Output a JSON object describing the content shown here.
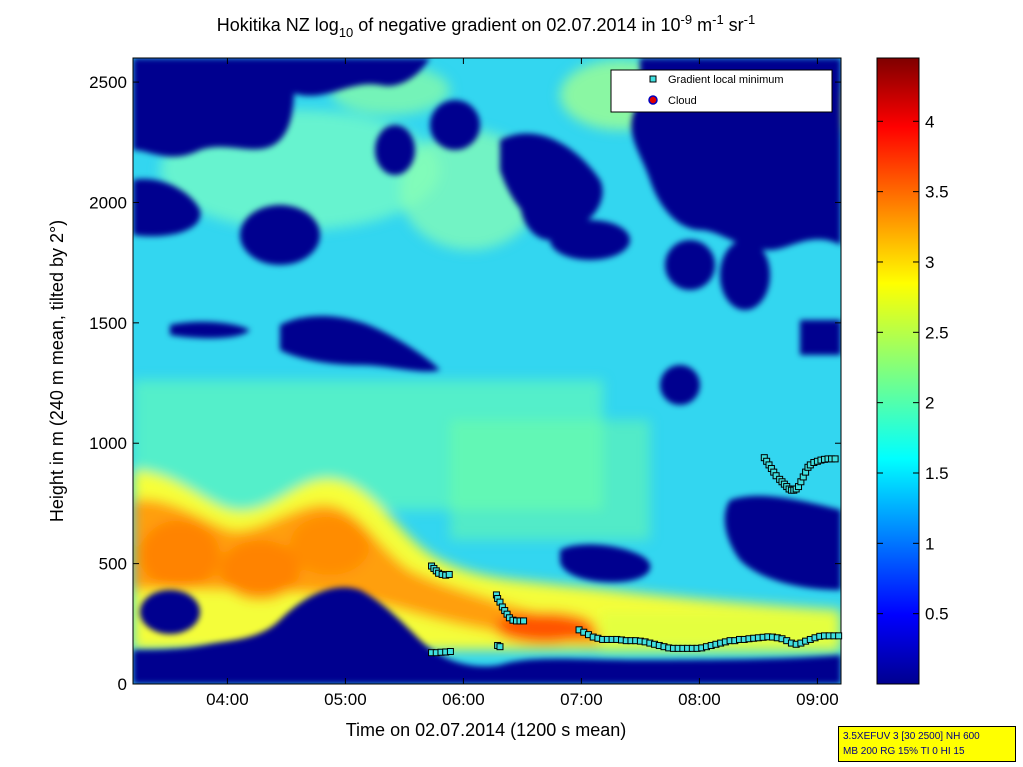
{
  "chart_data": {
    "type": "heatmap",
    "title": {
      "part1": "Hokitika NZ log",
      "sub1": "10",
      "part2": " of negative gradient on 02.07.2014 in 10",
      "sup1": "-9",
      "part3": " m",
      "sup2": "-1",
      "part4": " sr",
      "sup3": "-1"
    },
    "xlabel": "Time on 02.07.2014 (1200 s mean)",
    "ylabel": "Height in m (240 m mean, tilted by 2°)",
    "xlim": [
      3.2,
      9.2
    ],
    "ylim": [
      0,
      2600
    ],
    "x_ticks": [
      {
        "value": 4,
        "label": "04:00"
      },
      {
        "value": 5,
        "label": "05:00"
      },
      {
        "value": 6,
        "label": "06:00"
      },
      {
        "value": 7,
        "label": "07:00"
      },
      {
        "value": 8,
        "label": "08:00"
      },
      {
        "value": 9,
        "label": "09:00"
      }
    ],
    "y_ticks": [
      {
        "value": 0,
        "label": "0"
      },
      {
        "value": 500,
        "label": "500"
      },
      {
        "value": 1000,
        "label": "1000"
      },
      {
        "value": 1500,
        "label": "1500"
      },
      {
        "value": 2000,
        "label": "2000"
      },
      {
        "value": 2500,
        "label": "2500"
      }
    ],
    "colorbar": {
      "range": [
        0,
        4.45
      ],
      "colormap": "jet",
      "ticks": [
        {
          "value": 0.5,
          "label": "0.5"
        },
        {
          "value": 1,
          "label": "1"
        },
        {
          "value": 1.5,
          "label": "1.5"
        },
        {
          "value": 2,
          "label": "2"
        },
        {
          "value": 2.5,
          "label": "2.5"
        },
        {
          "value": 3,
          "label": "3"
        },
        {
          "value": 3.5,
          "label": "3.5"
        },
        {
          "value": 4,
          "label": "4"
        }
      ]
    },
    "legend": {
      "placement": "top-right",
      "entries": [
        {
          "label": "Gradient local minimum",
          "marker": "square",
          "color": "#40e0e0"
        },
        {
          "label": "Cloud",
          "marker": "circle",
          "color": "#e00000"
        }
      ]
    },
    "series": [
      {
        "name": "Gradient local minimum",
        "marker": "square",
        "color": "#40e0e0",
        "x": [
          5.73,
          5.75,
          5.77,
          5.79,
          5.82,
          5.85,
          5.88,
          5.73,
          5.77,
          5.81,
          5.85,
          5.89,
          6.28,
          6.29,
          6.31,
          6.33,
          6.35,
          6.37,
          6.39,
          6.42,
          6.45,
          6.48,
          6.51,
          6.29,
          6.31,
          6.98,
          7.02,
          7.06,
          7.1,
          7.14,
          7.18,
          7.22,
          7.26,
          7.3,
          7.34,
          7.38,
          7.42,
          7.46,
          7.5,
          7.54,
          7.58,
          7.62,
          7.66,
          7.7,
          7.74,
          7.78,
          7.82,
          7.86,
          7.9,
          7.94,
          7.98,
          8.02,
          8.06,
          8.1,
          8.14,
          8.18,
          8.22,
          8.26,
          8.3,
          8.34,
          8.38,
          8.42,
          8.46,
          8.5,
          8.54,
          8.58,
          8.62,
          8.66,
          8.7,
          8.74,
          8.78,
          8.82,
          8.86,
          8.9,
          8.94,
          8.98,
          9.02,
          9.06,
          9.1,
          9.14,
          9.18,
          8.55,
          8.57,
          8.59,
          8.61,
          8.63,
          8.65,
          8.68,
          8.7,
          8.72,
          8.74,
          8.76,
          8.78,
          8.8,
          8.82,
          8.84,
          8.86,
          8.88,
          8.9,
          8.92,
          8.94,
          8.97,
          9.0,
          9.03,
          9.06,
          9.09,
          9.12,
          9.15
        ],
        "y": [
          490,
          480,
          470,
          460,
          455,
          452,
          455,
          130,
          130,
          132,
          133,
          135,
          370,
          355,
          340,
          320,
          305,
          290,
          275,
          265,
          262,
          262,
          262,
          160,
          155,
          225,
          215,
          205,
          195,
          190,
          185,
          185,
          185,
          185,
          183,
          180,
          180,
          180,
          178,
          175,
          170,
          165,
          160,
          155,
          150,
          148,
          148,
          148,
          148,
          148,
          148,
          150,
          155,
          160,
          165,
          170,
          175,
          180,
          180,
          185,
          185,
          188,
          190,
          192,
          194,
          196,
          195,
          192,
          188,
          180,
          170,
          165,
          170,
          178,
          185,
          192,
          198,
          200,
          200,
          200,
          200,
          940,
          925,
          910,
          895,
          880,
          865,
          850,
          840,
          830,
          820,
          810,
          805,
          805,
          810,
          820,
          840,
          860,
          880,
          900,
          910,
          920,
          925,
          930,
          933,
          935,
          935,
          935
        ]
      }
    ],
    "heatmap_description_regions": {
      "background_value": 1.6,
      "boundary_layer_peak_value": 3.4
    }
  },
  "info_box": {
    "line1": "3.5XEFUV 3 [30 2500] NH 600",
    "line2": "MB 200 RG 15% TI 0 HI 15"
  }
}
